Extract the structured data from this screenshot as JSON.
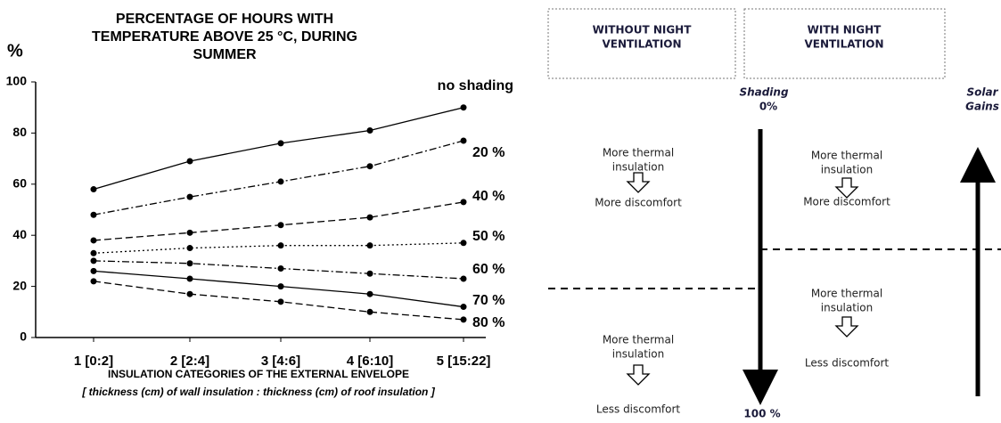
{
  "chart_data": {
    "type": "line",
    "title": [
      "PERCENTAGE OF HOURS WITH",
      "TEMPERATURE ABOVE 25 °C, DURING",
      "SUMMER"
    ],
    "y_label": "%",
    "x_label": "INSULATION CATEGORIES OF THE EXTERNAL ENVELOPE",
    "x_sublabel": "[ thickness (cm) of wall insulation : thickness (cm) of roof insulation ]",
    "categories": [
      "1 [0:2]",
      "2 [2:4]",
      "3 [4:6]",
      "4 [6:10]",
      "5 [15:22]"
    ],
    "series": [
      {
        "name": "no shading",
        "color": "#000",
        "dash": "solid",
        "values": [
          58,
          69,
          76,
          81,
          90
        ]
      },
      {
        "name": "20 %",
        "color": "#000",
        "dash": "dashdot",
        "values": [
          48,
          55,
          61,
          67,
          77
        ]
      },
      {
        "name": "40 %",
        "color": "#000",
        "dash": "dashed",
        "values": [
          38,
          41,
          44,
          47,
          53
        ]
      },
      {
        "name": "50 %",
        "color": "#000",
        "dash": "dotted",
        "values": [
          33,
          35,
          36,
          36,
          37
        ]
      },
      {
        "name": "60 %",
        "color": "#000",
        "dash": "dashdot",
        "values": [
          30,
          29,
          27,
          25,
          23
        ]
      },
      {
        "name": "70 %",
        "color": "#000",
        "dash": "solid",
        "values": [
          26,
          23,
          20,
          17,
          12
        ]
      },
      {
        "name": "80 %",
        "color": "#000",
        "dash": "dashed",
        "values": [
          22,
          17,
          14,
          10,
          7
        ]
      }
    ],
    "ylim": [
      0,
      100
    ],
    "yticks": [
      0,
      20,
      40,
      60,
      80,
      100
    ]
  },
  "diagram": {
    "headers": [
      [
        "WITHOUT NIGHT",
        "VENTILATION"
      ],
      [
        "WITH NIGHT",
        "VENTILATION"
      ]
    ],
    "shading_label": "Shading",
    "shading_top": "0%",
    "shading_bottom": "100 %",
    "solar_gains": [
      "Solar",
      "Gains"
    ],
    "panels": [
      {
        "lines": [
          "More thermal",
          "insulation"
        ],
        "result": "More discomfort"
      },
      {
        "lines": [
          "More thermal",
          "insulation"
        ],
        "result": "More discomfort"
      },
      {
        "lines": [
          "More thermal",
          "insulation"
        ],
        "result": "Less discomfort"
      },
      {
        "lines": [
          "More thermal",
          "insulation"
        ],
        "result": "Less discomfort"
      }
    ]
  }
}
